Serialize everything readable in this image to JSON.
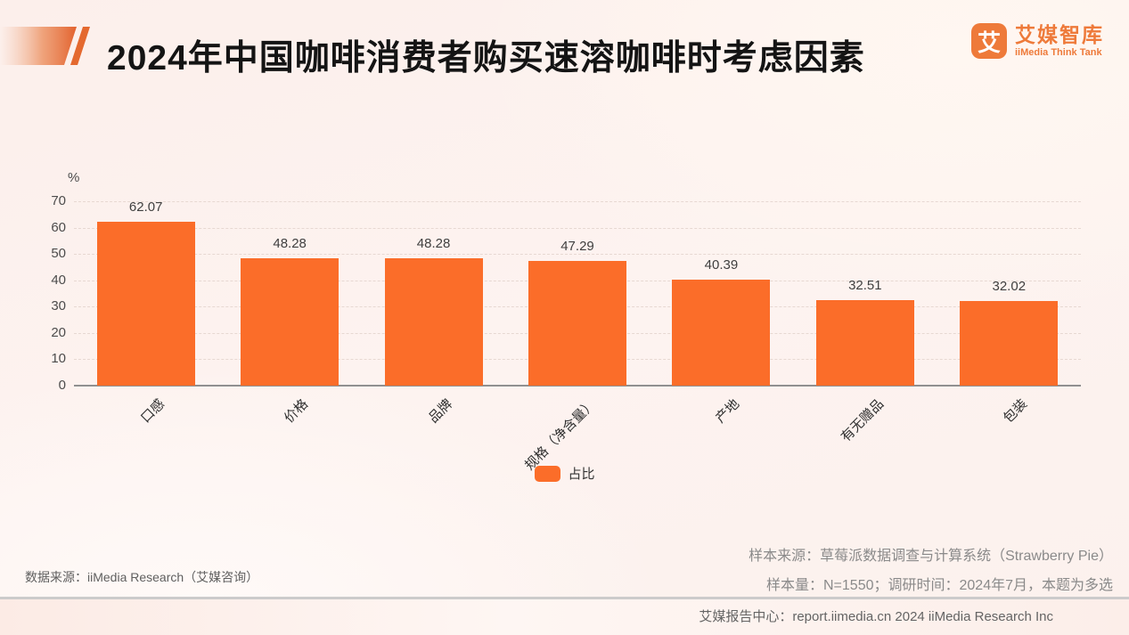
{
  "header": {
    "title": "2024年中国咖啡消费者购买速溶咖啡时考虑因素",
    "logo": {
      "icon_glyph": "艾",
      "brand_cn": "艾媒智库",
      "brand_en": "iiMedia Think Tank"
    }
  },
  "chart_data": {
    "type": "bar",
    "title": "2024年中国咖啡消费者购买速溶咖啡时考虑因素",
    "unit_label": "%",
    "categories": [
      "口感",
      "价格",
      "品牌",
      "规格（净含量）",
      "产地",
      "有无赠品",
      "包装"
    ],
    "series": [
      {
        "name": "占比",
        "values": [
          62.07,
          48.28,
          48.28,
          47.29,
          40.39,
          32.51,
          32.02
        ]
      }
    ],
    "value_labels": [
      "62.07",
      "48.28",
      "48.28",
      "47.29",
      "40.39",
      "32.51",
      "32.02"
    ],
    "ylim": [
      0,
      70
    ],
    "yticks": [
      0,
      10,
      20,
      30,
      40,
      50,
      60,
      70
    ],
    "grid": true,
    "legend_position": "bottom-center",
    "bar_color": "#FB6D29"
  },
  "notes": {
    "data_source": "数据来源：iiMedia Research（艾媒咨询）",
    "sample_source": "样本来源：草莓派数据调查与计算系统（Strawberry Pie）",
    "sample_info": "样本量：N=1550；调研时间：2024年7月，本题为多选"
  },
  "footer": {
    "text": "艾媒报告中心：report.iimedia.cn  2024 iiMedia Research Inc"
  },
  "colors": {
    "accent_orange": "#EE7A3A",
    "bar_orange": "#FB6D29",
    "title_text": "#141414",
    "page_bg": "#FCF2EE"
  }
}
